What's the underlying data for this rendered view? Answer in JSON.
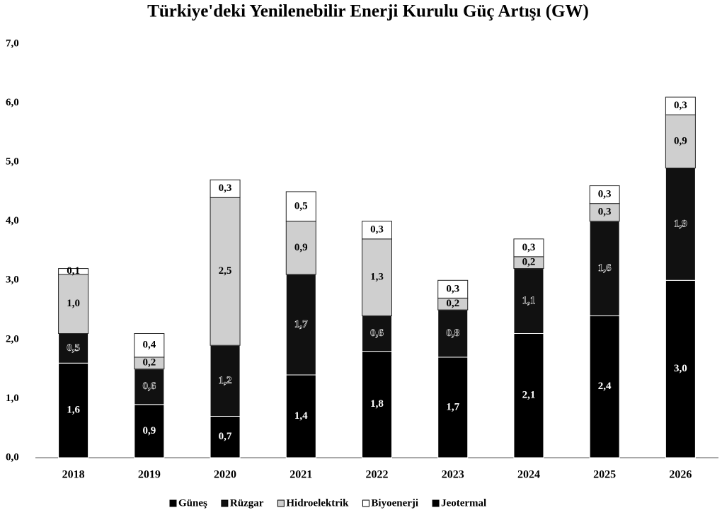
{
  "chart_data": {
    "type": "stacked_bar",
    "title": "Türkiye'deki Yenilenebilir Enerji Kurulu Güç Artışı (GW)",
    "categories": [
      "2018",
      "2019",
      "2020",
      "2021",
      "2022",
      "2023",
      "2024",
      "2025",
      "2026"
    ],
    "series": [
      {
        "name": "Güneş",
        "color": "#000000",
        "label_color": "#ffffff",
        "values": [
          1.6,
          0.9,
          0.7,
          1.4,
          1.8,
          1.7,
          2.1,
          2.4,
          3.0
        ],
        "value_labels": [
          "1,6",
          "0,9",
          "0,7",
          "1,4",
          "1,8",
          "1,7",
          "2,1",
          "2,4",
          "3,0"
        ]
      },
      {
        "name": "Rüzgar",
        "color": "#111111",
        "label_color": "#ffffff",
        "values": [
          0.5,
          0.6,
          1.2,
          1.7,
          0.6,
          0.8,
          1.1,
          1.6,
          1.9
        ],
        "value_labels": [
          "0,5",
          "0,6",
          "1,2",
          "1,7",
          "0,6",
          "0,8",
          "1,1",
          "1,6",
          "1,9"
        ]
      },
      {
        "name": "Hidroelektrik",
        "color": "#cfcfcf",
        "label_color": "#000000",
        "values": [
          1.0,
          0.2,
          2.5,
          0.9,
          1.3,
          0.2,
          0.2,
          0.3,
          0.9
        ],
        "value_labels": [
          "1,0",
          "0,2",
          "2,5",
          "0,9",
          "1,3",
          "0,2",
          "0,2",
          "0,3",
          "0,9"
        ]
      },
      {
        "name": "Biyoenerji",
        "color": "#ffffff",
        "label_color": "#000000",
        "values": [
          0.1,
          0.4,
          0.3,
          0.5,
          0.3,
          0.3,
          0.3,
          0.3,
          0.3
        ],
        "value_labels": [
          "0,1",
          "0,4",
          "0,3",
          "0,5",
          "0,3",
          "0,3",
          "0,3",
          "0,3",
          "0,3"
        ]
      },
      {
        "name": "Jeotermal",
        "color": "#000000",
        "values": [
          0,
          0,
          0,
          0,
          0,
          0,
          0,
          0,
          0
        ]
      }
    ],
    "ylim": [
      0,
      7
    ],
    "yticks": [
      {
        "value": 0,
        "label": "0,0"
      },
      {
        "value": 1,
        "label": "1,0"
      },
      {
        "value": 2,
        "label": "2,0"
      },
      {
        "value": 3,
        "label": "3,0"
      },
      {
        "value": 4,
        "label": "4,0"
      },
      {
        "value": 5,
        "label": "5,0"
      },
      {
        "value": 6,
        "label": "6,0"
      },
      {
        "value": 7,
        "label": "7,0"
      }
    ],
    "legend": "bottom"
  }
}
